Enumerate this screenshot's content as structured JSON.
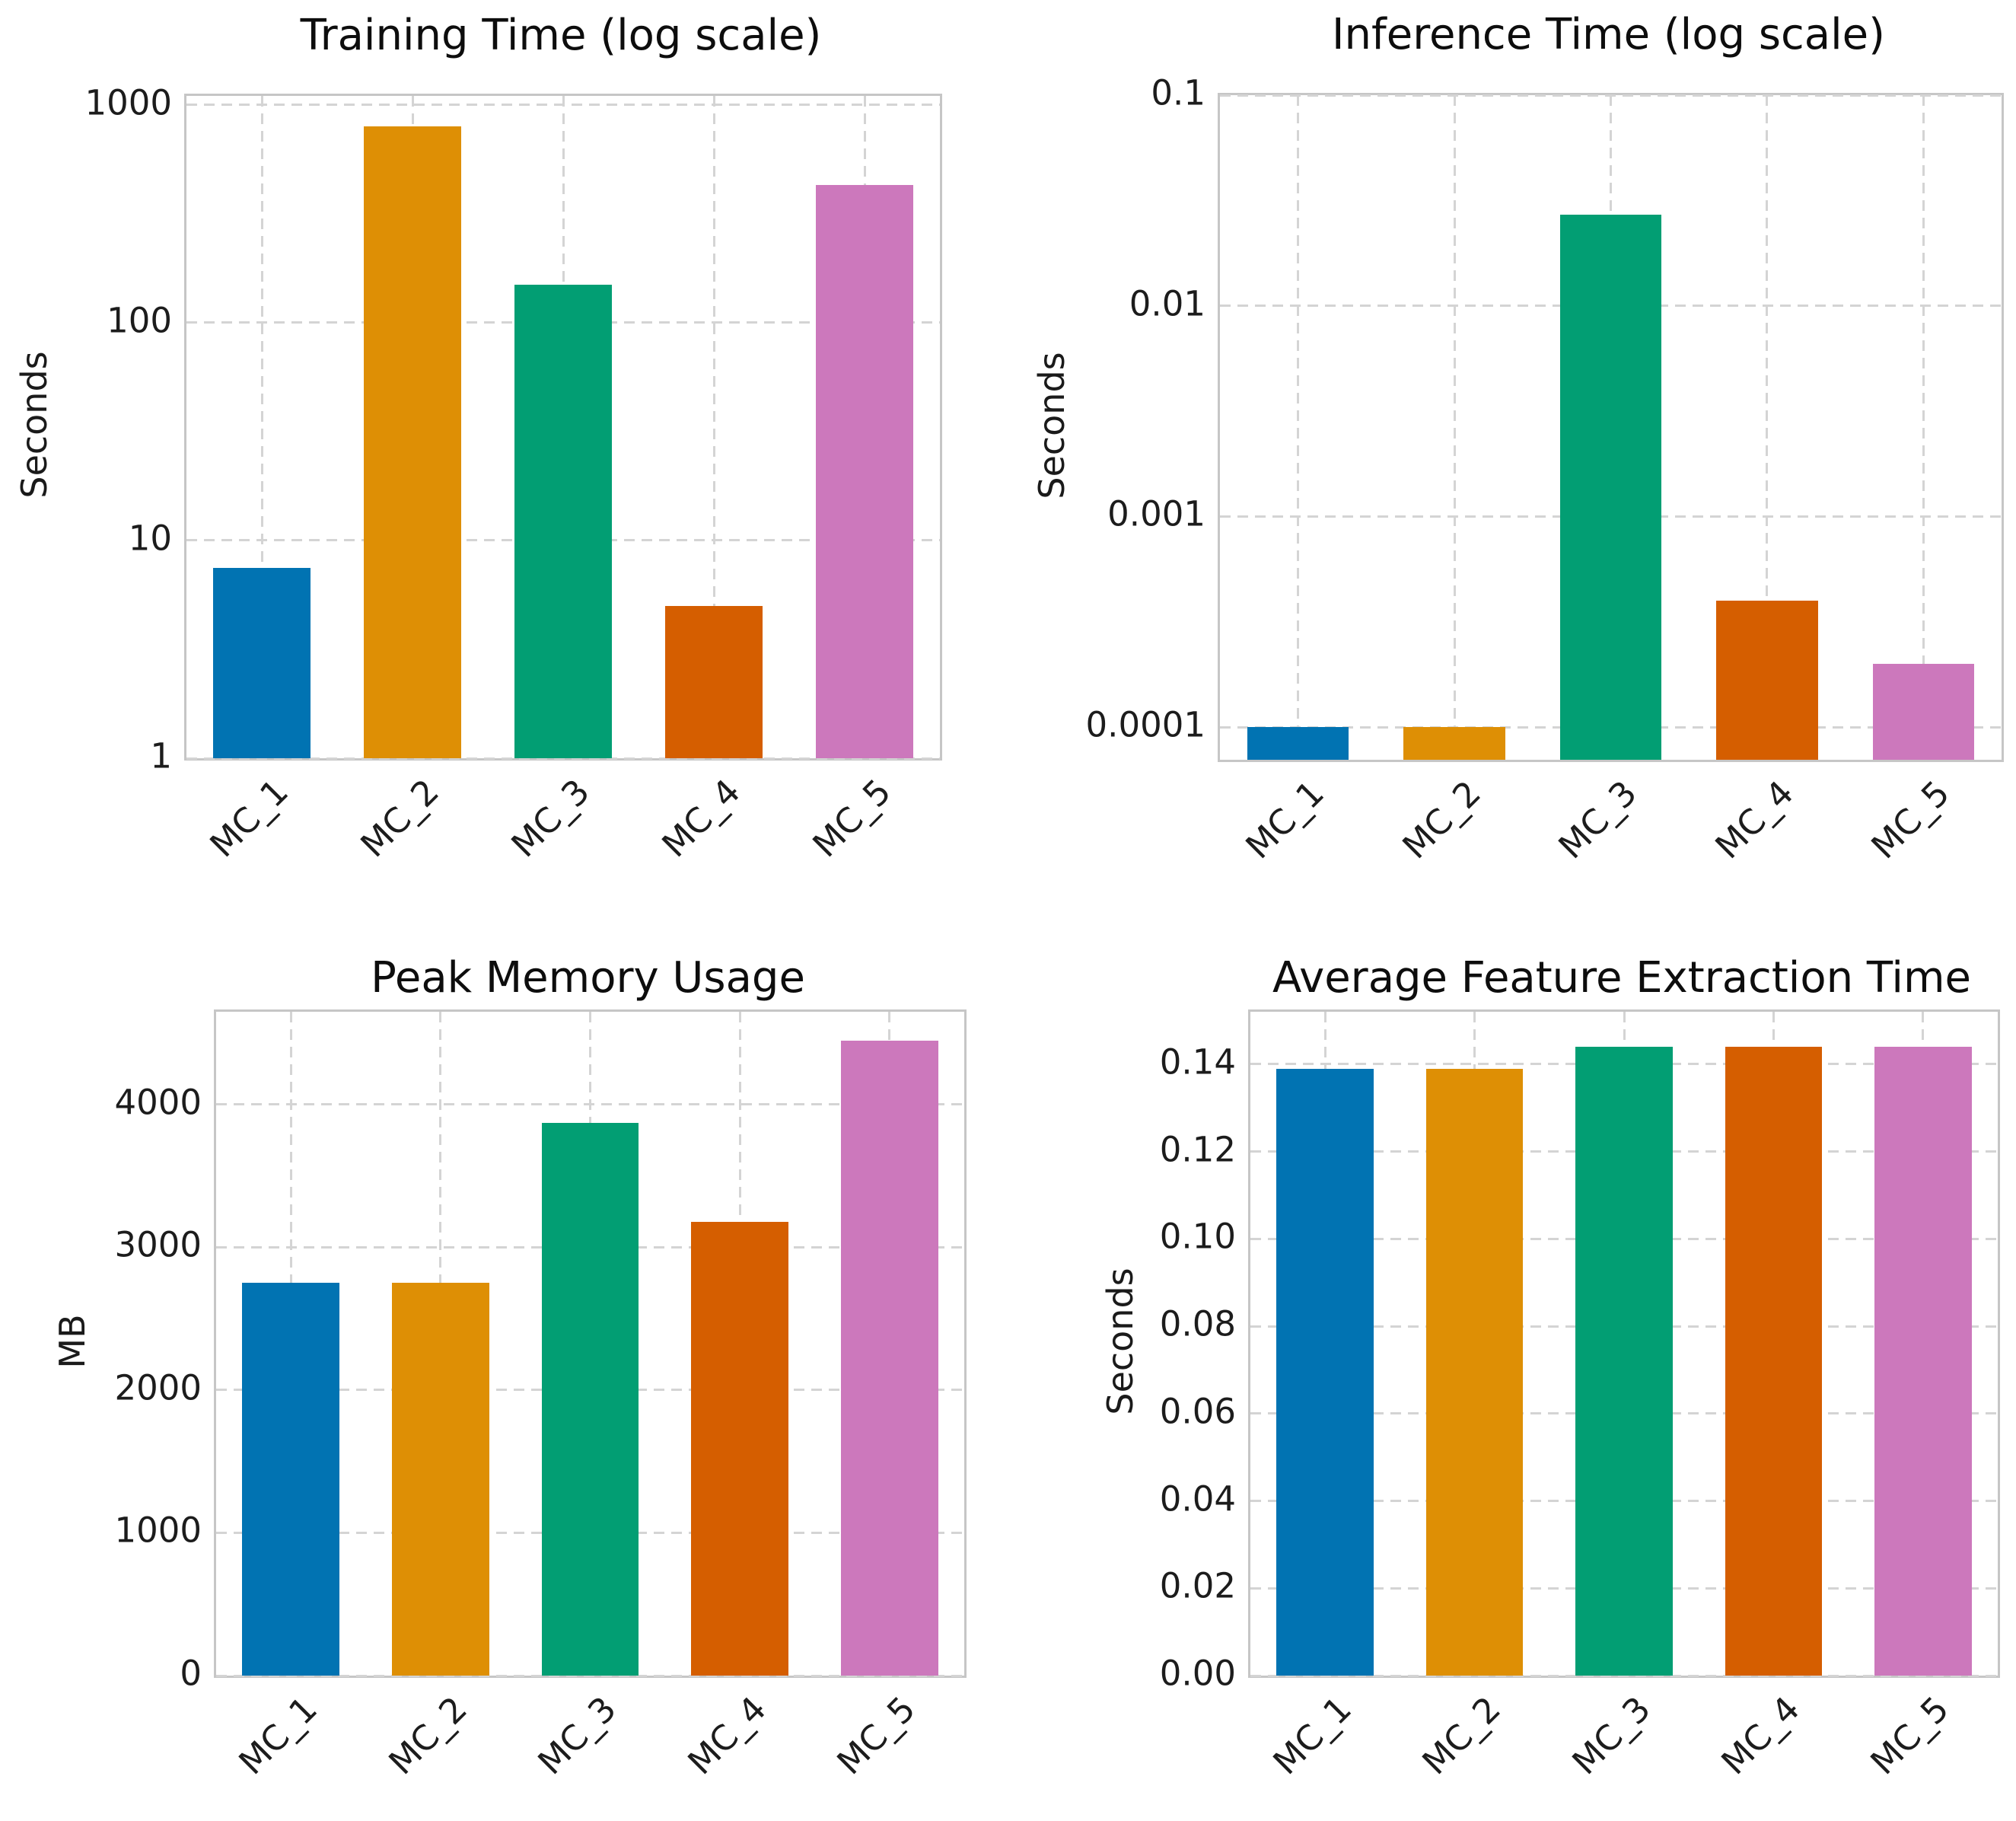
{
  "figure": {
    "background": "#ffffff",
    "grid_color": "#d4d4d4",
    "spine_color": "#c6c6c6",
    "text_color": "#1c1c1c"
  },
  "palette": [
    "#0173b2",
    "#de8f05",
    "#029e73",
    "#d55e00",
    "#cc78bc"
  ],
  "chart_data": [
    {
      "id": "training-time",
      "type": "bar",
      "title": "Training Time (log scale)",
      "ylabel": "Seconds",
      "xlabel": "",
      "scale": "log",
      "categories": [
        "MC_1",
        "MC_2",
        "MC_3",
        "MC_4",
        "MC_5"
      ],
      "values": [
        7.5,
        800,
        150,
        5,
        430
      ],
      "colors": [
        "#0173b2",
        "#de8f05",
        "#029e73",
        "#d55e00",
        "#cc78bc"
      ],
      "yticks": [
        1,
        10,
        100,
        1000
      ],
      "ytick_labels": [
        "1",
        "10",
        "100",
        "1000"
      ],
      "ylim": [
        1,
        1100
      ],
      "grid": "dashed",
      "legend": "none"
    },
    {
      "id": "inference-time",
      "type": "bar",
      "title": "Inference Time (log scale)",
      "ylabel": "Seconds",
      "xlabel": "",
      "scale": "log",
      "categories": [
        "MC_1",
        "MC_2",
        "MC_3",
        "MC_4",
        "MC_5"
      ],
      "values": [
        0.0001,
        0.0001,
        0.027,
        0.0004,
        0.0002
      ],
      "colors": [
        "#0173b2",
        "#de8f05",
        "#029e73",
        "#d55e00",
        "#cc78bc"
      ],
      "yticks": [
        0.0001,
        0.001,
        0.01,
        0.1
      ],
      "ytick_labels": [
        "0.0001",
        "0.001",
        "0.01",
        "0.1"
      ],
      "ylim": [
        7e-05,
        0.1
      ],
      "grid": "dashed",
      "legend": "none"
    },
    {
      "id": "peak-memory",
      "type": "bar",
      "title": "Peak Memory Usage",
      "ylabel": "MB",
      "xlabel": "",
      "scale": "linear",
      "categories": [
        "MC_1",
        "MC_2",
        "MC_3",
        "MC_4",
        "MC_5"
      ],
      "values": [
        2750,
        2750,
        3870,
        3180,
        4450
      ],
      "colors": [
        "#0173b2",
        "#de8f05",
        "#029e73",
        "#d55e00",
        "#cc78bc"
      ],
      "yticks": [
        0,
        1000,
        2000,
        3000,
        4000
      ],
      "ytick_labels": [
        "0",
        "1000",
        "2000",
        "3000",
        "4000"
      ],
      "ylim": [
        0,
        4650
      ],
      "grid": "dashed",
      "legend": "none"
    },
    {
      "id": "feature-extraction",
      "type": "bar",
      "title": "Average Feature Extraction Time",
      "ylabel": "Seconds",
      "xlabel": "",
      "scale": "linear",
      "categories": [
        "MC_1",
        "MC_2",
        "MC_3",
        "MC_4",
        "MC_5"
      ],
      "values": [
        0.139,
        0.139,
        0.144,
        0.144,
        0.144
      ],
      "colors": [
        "#0173b2",
        "#de8f05",
        "#029e73",
        "#d55e00",
        "#cc78bc"
      ],
      "yticks": [
        0,
        0.02,
        0.04,
        0.06,
        0.08,
        0.1,
        0.12,
        0.14
      ],
      "ytick_labels": [
        "0.00",
        "0.02",
        "0.04",
        "0.06",
        "0.08",
        "0.10",
        "0.12",
        "0.14"
      ],
      "ylim": [
        0,
        0.152
      ],
      "grid": "dashed",
      "legend": "none"
    }
  ]
}
